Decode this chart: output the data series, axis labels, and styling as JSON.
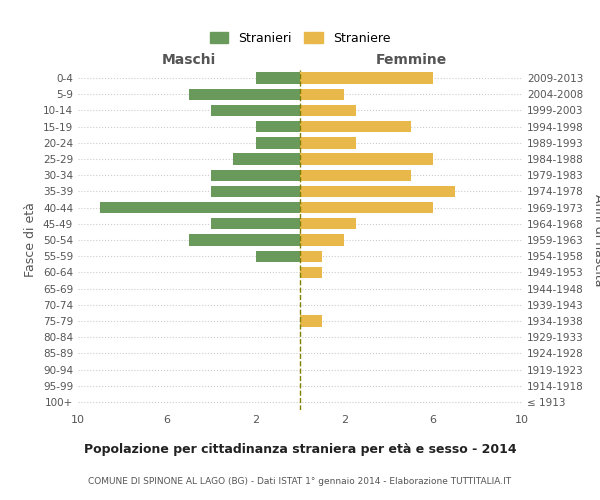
{
  "age_groups": [
    "100+",
    "95-99",
    "90-94",
    "85-89",
    "80-84",
    "75-79",
    "70-74",
    "65-69",
    "60-64",
    "55-59",
    "50-54",
    "45-49",
    "40-44",
    "35-39",
    "30-34",
    "25-29",
    "20-24",
    "15-19",
    "10-14",
    "5-9",
    "0-4"
  ],
  "birth_years": [
    "≤ 1913",
    "1914-1918",
    "1919-1923",
    "1924-1928",
    "1929-1933",
    "1934-1938",
    "1939-1943",
    "1944-1948",
    "1949-1953",
    "1954-1958",
    "1959-1963",
    "1964-1968",
    "1969-1973",
    "1974-1978",
    "1979-1983",
    "1984-1988",
    "1989-1993",
    "1994-1998",
    "1999-2003",
    "2004-2008",
    "2009-2013"
  ],
  "males": [
    0,
    0,
    0,
    0,
    0,
    0,
    0,
    0,
    0,
    2,
    5,
    4,
    9,
    4,
    4,
    3,
    2,
    2,
    4,
    5,
    2
  ],
  "females": [
    0,
    0,
    0,
    0,
    0,
    1,
    0,
    0,
    1,
    1,
    2,
    2.5,
    6,
    7,
    5,
    6,
    2.5,
    5,
    2.5,
    2,
    6
  ],
  "male_color": "#6a9a5b",
  "female_color": "#e8b84b",
  "dashed_line_color": "#808000",
  "background_color": "#ffffff",
  "grid_color": "#cccccc",
  "title": "Popolazione per cittadinanza straniera per età e sesso - 2014",
  "subtitle": "COMUNE DI SPINONE AL LAGO (BG) - Dati ISTAT 1° gennaio 2014 - Elaborazione TUTTITALIA.IT",
  "ylabel_left": "Fasce di età",
  "ylabel_right": "Anni di nascita",
  "xlabel_maschi": "Maschi",
  "xlabel_femmine": "Femmine",
  "legend_male": "Stranieri",
  "legend_female": "Straniere"
}
